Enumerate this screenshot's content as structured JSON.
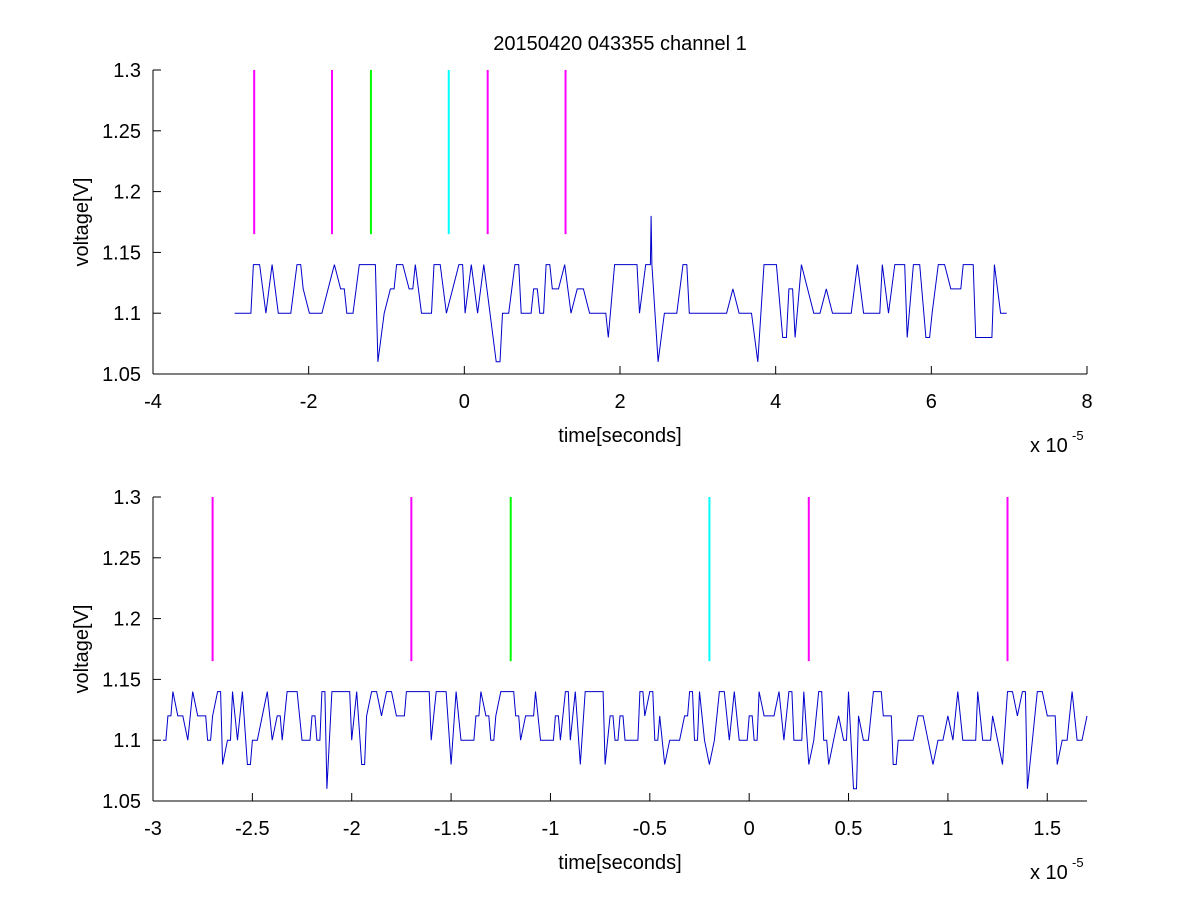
{
  "title": "20150420 043355 channel 1",
  "chart_data": [
    {
      "type": "line",
      "xlabel": "time[seconds]",
      "ylabel": "voltage[V]",
      "x_exponent_label": "x 10",
      "x_exponent_power": "-5",
      "xlim": [
        -4,
        8
      ],
      "ylim": [
        1.05,
        1.3
      ],
      "xticks": [
        "-4",
        "-2",
        "0",
        "2",
        "4",
        "6",
        "8"
      ],
      "yticks": [
        "1.05",
        "1.1",
        "1.15",
        "1.2",
        "1.25",
        "1.3"
      ],
      "xtick_values": [
        -4,
        -2,
        0,
        2,
        4,
        6,
        8
      ],
      "ytick_values": [
        1.05,
        1.1,
        1.15,
        1.2,
        1.25,
        1.3
      ],
      "grid": false,
      "signal": {
        "color": "#0000cc",
        "x_range": [
          -2.95,
          7.0
        ],
        "levels": [
          1.06,
          1.08,
          1.1,
          1.12,
          1.14
        ],
        "baseline": 1.1,
        "spike": {
          "x": 2.4,
          "y": 1.18
        }
      },
      "markers": [
        {
          "x": -2.7,
          "y0": 1.165,
          "y1": 1.3,
          "color": "#ff00ff"
        },
        {
          "x": -1.7,
          "y0": 1.165,
          "y1": 1.3,
          "color": "#ff00ff"
        },
        {
          "x": -1.2,
          "y0": 1.165,
          "y1": 1.3,
          "color": "#00ff00"
        },
        {
          "x": -0.2,
          "y0": 1.165,
          "y1": 1.3,
          "color": "#00ffff"
        },
        {
          "x": 0.3,
          "y0": 1.165,
          "y1": 1.3,
          "color": "#ff00ff"
        },
        {
          "x": 1.3,
          "y0": 1.165,
          "y1": 1.3,
          "color": "#ff00ff"
        }
      ]
    },
    {
      "type": "line",
      "xlabel": "time[seconds]",
      "ylabel": "voltage[V]",
      "x_exponent_label": "x 10",
      "x_exponent_power": "-5",
      "xlim": [
        -3.0,
        1.7
      ],
      "ylim": [
        1.05,
        1.3
      ],
      "xticks": [
        "-3",
        "-2.5",
        "-2",
        "-1.5",
        "-1",
        "-0.5",
        "0",
        "0.5",
        "1",
        "1.5"
      ],
      "yticks": [
        "1.05",
        "1.1",
        "1.15",
        "1.2",
        "1.25",
        "1.3"
      ],
      "xtick_values": [
        -3,
        -2.5,
        -2,
        -1.5,
        -1,
        -0.5,
        0,
        0.5,
        1,
        1.5
      ],
      "ytick_values": [
        1.05,
        1.1,
        1.15,
        1.2,
        1.25,
        1.3
      ],
      "grid": false,
      "signal": {
        "color": "#0000cc",
        "x_range": [
          -2.95,
          1.7
        ],
        "levels": [
          1.06,
          1.08,
          1.1,
          1.12,
          1.14
        ],
        "baseline": 1.1
      },
      "markers": [
        {
          "x": -2.7,
          "y0": 1.165,
          "y1": 1.3,
          "color": "#ff00ff"
        },
        {
          "x": -1.7,
          "y0": 1.165,
          "y1": 1.3,
          "color": "#ff00ff"
        },
        {
          "x": -1.2,
          "y0": 1.165,
          "y1": 1.3,
          "color": "#00ff00"
        },
        {
          "x": -0.2,
          "y0": 1.165,
          "y1": 1.3,
          "color": "#00ffff"
        },
        {
          "x": 0.3,
          "y0": 1.165,
          "y1": 1.3,
          "color": "#ff00ff"
        },
        {
          "x": 1.3,
          "y0": 1.165,
          "y1": 1.3,
          "color": "#ff00ff"
        }
      ]
    }
  ]
}
